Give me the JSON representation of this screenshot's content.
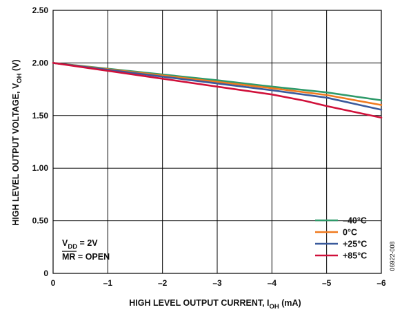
{
  "chart_data": {
    "type": "line",
    "title": "",
    "xlabel": "HIGH LEVEL OUTPUT CURRENT, I",
    "xlabel_sub": "OH",
    "xlabel_unit": " (mA)",
    "ylabel": "HIGH LEVEL OUTPUT VOLTAGE, V",
    "ylabel_sub": "OH",
    "ylabel_unit": " (V)",
    "xlim": [
      0,
      -6
    ],
    "ylim": [
      0,
      2.5
    ],
    "x_ticks": [
      0,
      -1,
      -2,
      -3,
      -4,
      -5,
      -6
    ],
    "x_tick_labels": [
      "0",
      "–1",
      "–2",
      "–3",
      "–4",
      "–5",
      "–6"
    ],
    "y_ticks": [
      0,
      0.5,
      1.0,
      1.5,
      2.0,
      2.5
    ],
    "y_tick_labels": [
      "0",
      "0.50",
      "1.00",
      "1.50",
      "2.00",
      "2.50"
    ],
    "grid": true,
    "legend_position": "bottom-right",
    "series": [
      {
        "name": "–40°C",
        "color": "#2e9a6a",
        "x": [
          0,
          -1,
          -2,
          -3,
          -4,
          -5,
          -6
        ],
        "y": [
          2.0,
          1.945,
          1.89,
          1.835,
          1.775,
          1.72,
          1.645
        ]
      },
      {
        "name": "0°C",
        "color": "#f07a1e",
        "x": [
          0,
          -1,
          -2,
          -3,
          -4,
          -5,
          -6
        ],
        "y": [
          2.0,
          1.94,
          1.88,
          1.82,
          1.76,
          1.695,
          1.6
        ]
      },
      {
        "name": "+25°C",
        "color": "#3a5a9c",
        "x": [
          0,
          -1,
          -2,
          -3,
          -4,
          -5,
          -6
        ],
        "y": [
          2.0,
          1.935,
          1.87,
          1.805,
          1.74,
          1.67,
          1.555
        ]
      },
      {
        "name": "+85°C",
        "color": "#d0103a",
        "x": [
          0,
          -1,
          -2,
          -3,
          -4,
          -4.6,
          -5,
          -6
        ],
        "y": [
          2.0,
          1.925,
          1.85,
          1.775,
          1.7,
          1.64,
          1.59,
          1.48
        ]
      }
    ],
    "annotations": {
      "vdd_main": "V",
      "vdd_sub": "DD",
      "vdd_rest": " = 2V",
      "mr_main": "MR",
      "mr_rest": " = OPEN"
    },
    "figure_id": "06922-008"
  }
}
